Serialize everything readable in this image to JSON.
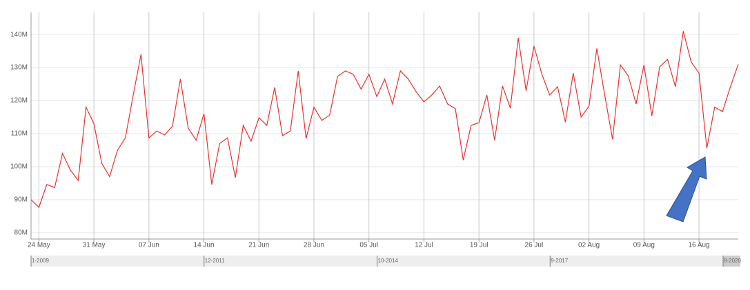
{
  "chart_data": {
    "type": "line",
    "categories": [
      null,
      "24 May",
      null,
      null,
      null,
      null,
      null,
      null,
      "31 May",
      null,
      null,
      null,
      null,
      null,
      null,
      "07 Jun",
      null,
      null,
      null,
      null,
      null,
      null,
      "14 Jun",
      null,
      null,
      null,
      null,
      null,
      null,
      "21 Jun",
      null,
      null,
      null,
      null,
      null,
      null,
      "28 Jun",
      null,
      null,
      null,
      null,
      null,
      null,
      "05 Jul",
      null,
      null,
      null,
      null,
      null,
      null,
      "12 Jul",
      null,
      null,
      null,
      null,
      null,
      null,
      "19 Jul",
      null,
      null,
      null,
      null,
      null,
      null,
      "26 Jul",
      null,
      null,
      null,
      null,
      null,
      null,
      "02 Aug",
      null,
      null,
      null,
      null,
      null,
      null,
      "09 Aug",
      null,
      null,
      null,
      null,
      null,
      null,
      "16 Aug",
      null,
      null,
      null,
      null,
      null
    ],
    "values": [
      90,
      87.7,
      94.6,
      93.7,
      104,
      99,
      95.8,
      118,
      113,
      101,
      97,
      105,
      108.7,
      121.7,
      134,
      108.7,
      110.8,
      109.6,
      112.3,
      126.5,
      111.7,
      108,
      116,
      94.6,
      107,
      108.7,
      96.7,
      112.5,
      107.7,
      114.8,
      112.5,
      124,
      109.4,
      110.8,
      129,
      108.5,
      118,
      114,
      115.6,
      127.3,
      129,
      128,
      123.5,
      128,
      121.2,
      126.5,
      119,
      129,
      126.5,
      122.7,
      119.6,
      121.7,
      124.4,
      119,
      117.5,
      102,
      112.5,
      113.3,
      121.7,
      108,
      124.4,
      117.7,
      139,
      123,
      136.5,
      128,
      121.7,
      124.2,
      113.5,
      128.3,
      115,
      118.3,
      135.8,
      121.7,
      108.3,
      130.8,
      127.5,
      119,
      130.8,
      115.4,
      130.2,
      132.5,
      124.2,
      141,
      131.7,
      128.3,
      105.6,
      118,
      116.7,
      124.2,
      131
    ],
    "color": "#e8322e",
    "ylim": [
      78.1,
      146.7
    ],
    "yticks": [
      {
        "value": 80,
        "label": "80M"
      },
      {
        "value": 90,
        "label": "90M"
      },
      {
        "value": 100,
        "label": "100M"
      },
      {
        "value": 110,
        "label": "110M"
      },
      {
        "value": 120,
        "label": "120M"
      },
      {
        "value": 130,
        "label": "130M"
      },
      {
        "value": 140,
        "label": "140M"
      }
    ],
    "grid": true,
    "navigator_labels": [
      "1-2009",
      "12-2011",
      "10-2014",
      "9-2017",
      "8-2020"
    ]
  }
}
